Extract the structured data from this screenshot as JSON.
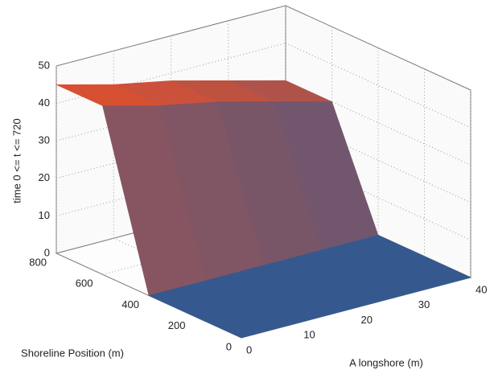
{
  "chart_data": {
    "type": "surface",
    "x_label": "A longshore (m)",
    "y_label": "Shoreline Position (m)",
    "z_label": "time 0 <= t <= 720",
    "x": [
      0,
      10,
      20,
      30,
      40
    ],
    "y": [
      0,
      200,
      400,
      600,
      800
    ],
    "z": [
      [
        0,
        0,
        0,
        0,
        0
      ],
      [
        0,
        0,
        0,
        0,
        0
      ],
      [
        0,
        0,
        0,
        0,
        0
      ],
      [
        45,
        41,
        38,
        34,
        30
      ],
      [
        45,
        41,
        38,
        34,
        30
      ]
    ],
    "xlim": [
      0,
      40
    ],
    "xticks": [
      0,
      10,
      20,
      30,
      40
    ],
    "ylim": [
      0,
      800
    ],
    "yticks": [
      0,
      200,
      400,
      600,
      800
    ],
    "zlim": [
      0,
      50
    ],
    "zticks": [
      0,
      10,
      20,
      30,
      40,
      50
    ],
    "grid": true,
    "low_color": "#35598f",
    "high_color": "#e0502e"
  }
}
